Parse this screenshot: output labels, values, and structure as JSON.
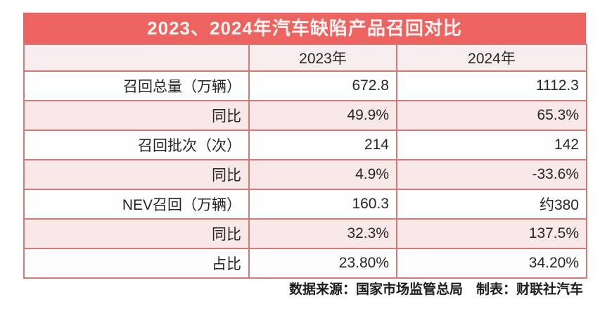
{
  "title": "2023、2024年汽车缺陷产品召回对比",
  "table": {
    "col_2023": "2023年",
    "col_2024": "2024年",
    "rows": [
      {
        "label": "召回总量（万辆）",
        "v2023": "672.8",
        "v2024": "1112.3"
      },
      {
        "label": "同比",
        "v2023": "49.9%",
        "v2024": "65.3%"
      },
      {
        "label": "召回批次（次）",
        "v2023": "214",
        "v2024": "142"
      },
      {
        "label": "同比",
        "v2023": "4.9%",
        "v2024": "-33.6%"
      },
      {
        "label": "NEV召回（万辆）",
        "v2023": "160.3",
        "v2024": "约380"
      },
      {
        "label": "同比",
        "v2023": "32.3%",
        "v2024": "137.5%"
      },
      {
        "label": "占比",
        "v2023": "23.80%",
        "v2024": "34.20%"
      }
    ]
  },
  "footer": "数据来源：国家市场监管总局　制表：财联社汽车",
  "chart_data": {
    "type": "table",
    "title": "2023、2024年汽车缺陷产品召回对比",
    "columns": [
      "",
      "2023年",
      "2024年"
    ],
    "rows": [
      [
        "召回总量（万辆）",
        "672.8",
        "1112.3"
      ],
      [
        "同比",
        "49.9%",
        "65.3%"
      ],
      [
        "召回批次（次）",
        "214",
        "142"
      ],
      [
        "同比",
        "4.9%",
        "-33.6%"
      ],
      [
        "NEV召回（万辆）",
        "160.3",
        "约380"
      ],
      [
        "同比",
        "32.3%",
        "137.5%"
      ],
      [
        "占比",
        "23.80%",
        "34.20%"
      ]
    ],
    "source_note": "数据来源：国家市场监管总局",
    "credit_note": "制表：财联社汽车"
  },
  "colors": {
    "title_bg": "#ed6360",
    "title_text": "#fdf5f4",
    "border": "#d47a75",
    "row_shade": "#f8e8e8",
    "row_plain": "#fffefe",
    "header_bg": "#f7edee",
    "text": "#262626"
  }
}
